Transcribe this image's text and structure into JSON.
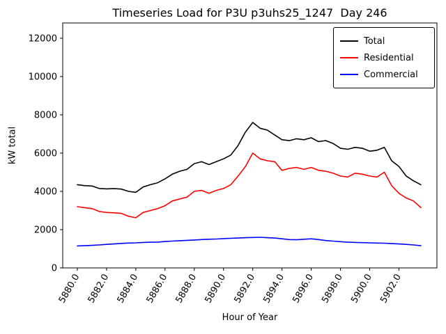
{
  "chart_data": {
    "type": "line",
    "title": "Timeseries Load for P3U p3uhs25_1247  Day 246",
    "xlabel": "Hour of Year",
    "ylabel": "kW total",
    "xlim": [
      5879.0,
      5904.6
    ],
    "ylim": [
      0,
      12800
    ],
    "grid": false,
    "legend_position": "upper right",
    "x_ticks": [
      5880,
      5882,
      5884,
      5886,
      5888,
      5890,
      5892,
      5894,
      5896,
      5898,
      5900,
      5902
    ],
    "x_tick_labels": [
      "5880.0",
      "5882.0",
      "5884.0",
      "5886.0",
      "5888.0",
      "5890.0",
      "5892.0",
      "5894.0",
      "5896.0",
      "5898.0",
      "5900.0",
      "5902.0"
    ],
    "y_ticks": [
      0,
      2000,
      4000,
      6000,
      8000,
      10000,
      12000
    ],
    "x": [
      5880,
      5880.5,
      5881,
      5881.5,
      5882,
      5882.5,
      5883,
      5883.5,
      5884,
      5884.5,
      5885,
      5885.5,
      5886,
      5886.5,
      5887,
      5887.5,
      5888,
      5888.5,
      5889,
      5889.5,
      5890,
      5890.5,
      5891,
      5891.5,
      5892,
      5892.5,
      5893,
      5893.5,
      5894,
      5894.5,
      5895,
      5895.5,
      5896,
      5896.5,
      5897,
      5897.5,
      5898,
      5898.5,
      5899,
      5899.5,
      5900,
      5900.5,
      5901,
      5901.5,
      5902,
      5902.5,
      5903,
      5903.5
    ],
    "series": [
      {
        "name": "Total",
        "color": "#000000",
        "values": [
          4350,
          4300,
          4280,
          4150,
          4130,
          4140,
          4120,
          4000,
          3950,
          4230,
          4350,
          4450,
          4650,
          4900,
          5050,
          5150,
          5450,
          5550,
          5400,
          5550,
          5700,
          5900,
          6400,
          7100,
          7600,
          7300,
          7200,
          6950,
          6700,
          6650,
          6750,
          6700,
          6800,
          6600,
          6650,
          6500,
          6250,
          6200,
          6300,
          6250,
          6100,
          6150,
          6300,
          5600,
          5300,
          4800,
          4550,
          4350
        ]
      },
      {
        "name": "Residential",
        "color": "#ff0000",
        "values": [
          3200,
          3150,
          3100,
          2950,
          2900,
          2880,
          2850,
          2700,
          2620,
          2900,
          3000,
          3100,
          3250,
          3500,
          3600,
          3700,
          4000,
          4050,
          3900,
          4050,
          4150,
          4350,
          4800,
          5300,
          6000,
          5700,
          5600,
          5550,
          5100,
          5200,
          5250,
          5150,
          5250,
          5100,
          5050,
          4950,
          4800,
          4750,
          4950,
          4900,
          4800,
          4750,
          5000,
          4300,
          3900,
          3650,
          3500,
          3150
        ]
      },
      {
        "name": "Commercial",
        "color": "#0000ff",
        "values": [
          1150,
          1160,
          1180,
          1200,
          1230,
          1250,
          1280,
          1300,
          1310,
          1330,
          1340,
          1350,
          1380,
          1400,
          1420,
          1440,
          1460,
          1480,
          1500,
          1510,
          1530,
          1550,
          1560,
          1580,
          1590,
          1600,
          1580,
          1560,
          1520,
          1480,
          1470,
          1500,
          1520,
          1480,
          1430,
          1400,
          1370,
          1340,
          1330,
          1320,
          1310,
          1300,
          1290,
          1270,
          1250,
          1230,
          1200,
          1160
        ]
      }
    ]
  }
}
